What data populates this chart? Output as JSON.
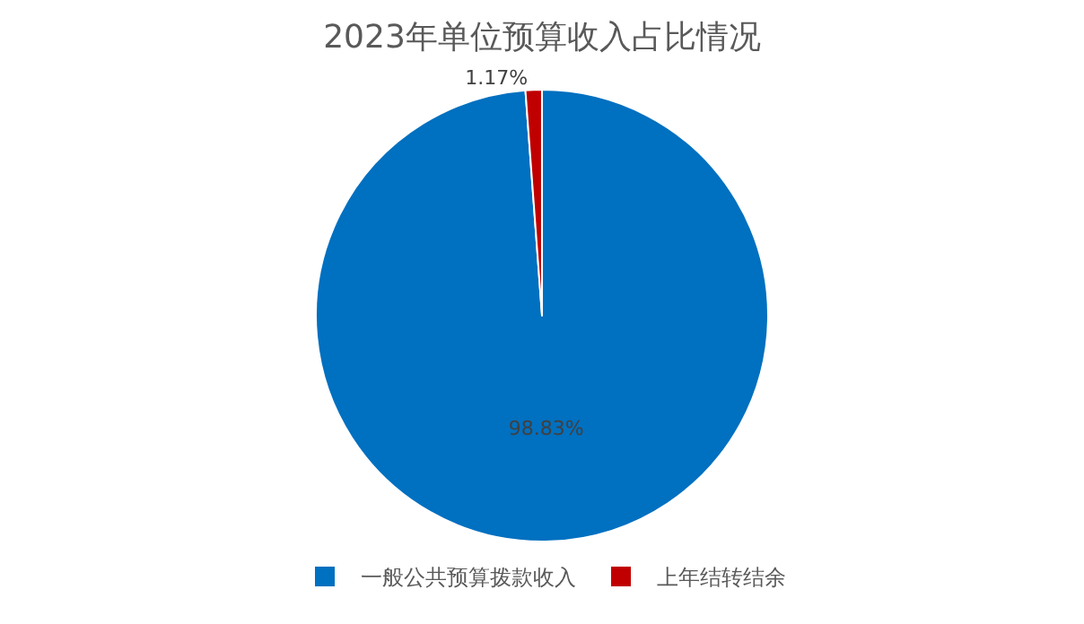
{
  "chart_data": {
    "type": "pie",
    "title": "2023年单位预算收入占比情况",
    "categories": [
      "一般公共预算拨款收入",
      "上年结转结余"
    ],
    "values": [
      98.83,
      1.17
    ],
    "value_labels": [
      "98.83%",
      "1.17%"
    ],
    "colors": [
      "#0070c0",
      "#c00000"
    ],
    "legend": "bottom"
  }
}
